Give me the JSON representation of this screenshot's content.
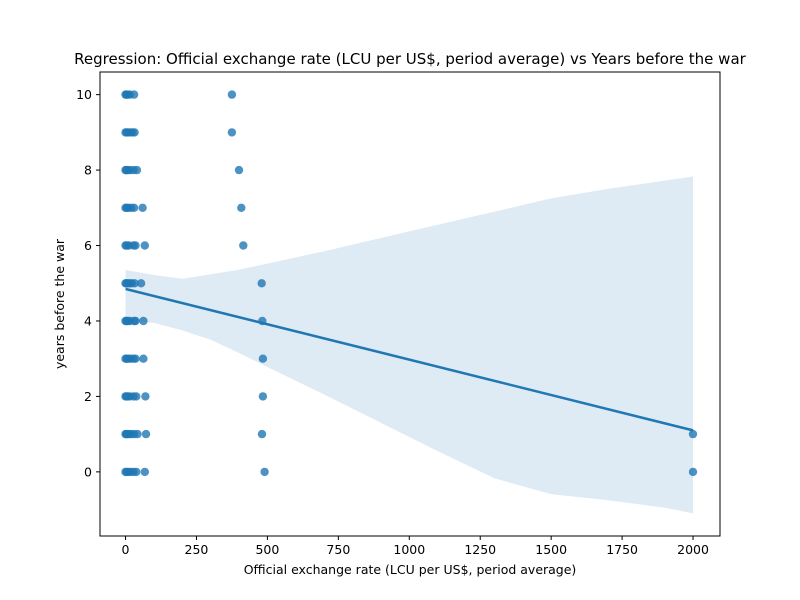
{
  "chart_data": {
    "type": "scatter",
    "title": "Regression: Official exchange rate (LCU per US$, period average) vs Years before the war",
    "xlabel": "Official exchange rate (LCU per US$, period average)",
    "ylabel": "years before the war",
    "xlim": [
      -90,
      2095
    ],
    "ylim": [
      -1.7,
      10.6
    ],
    "xticks": [
      0,
      250,
      500,
      750,
      1000,
      1250,
      1500,
      1750,
      2000
    ],
    "yticks": [
      0,
      2,
      4,
      6,
      8,
      10
    ],
    "grid": false,
    "colors": {
      "points": "#1f77b4",
      "line": "#1f77b4",
      "band": "#1f77b4"
    },
    "regression": {
      "x": [
        0,
        2000
      ],
      "y": [
        4.85,
        1.1
      ]
    },
    "confidence_band": {
      "x": [
        0,
        100,
        200,
        300,
        400,
        500,
        700,
        900,
        1100,
        1300,
        1500,
        1700,
        1900,
        2000
      ],
      "upper": [
        5.35,
        5.22,
        5.12,
        5.24,
        5.36,
        5.52,
        5.85,
        6.2,
        6.55,
        6.9,
        7.25,
        7.5,
        7.72,
        7.83
      ],
      "lower": [
        4.0,
        3.95,
        3.75,
        3.5,
        3.15,
        2.78,
        2.05,
        1.3,
        0.55,
        -0.17,
        -0.59,
        -0.75,
        -0.95,
        -1.1
      ]
    },
    "points": [
      {
        "x": 0,
        "y": 10
      },
      {
        "x": 3,
        "y": 10
      },
      {
        "x": 8,
        "y": 10
      },
      {
        "x": 15,
        "y": 10
      },
      {
        "x": 30,
        "y": 10
      },
      {
        "x": 375,
        "y": 10
      },
      {
        "x": 0,
        "y": 9
      },
      {
        "x": 4,
        "y": 9
      },
      {
        "x": 10,
        "y": 9
      },
      {
        "x": 18,
        "y": 9
      },
      {
        "x": 25,
        "y": 9
      },
      {
        "x": 32,
        "y": 9
      },
      {
        "x": 375,
        "y": 9
      },
      {
        "x": 0,
        "y": 8
      },
      {
        "x": 3,
        "y": 8
      },
      {
        "x": 8,
        "y": 8
      },
      {
        "x": 15,
        "y": 8
      },
      {
        "x": 28,
        "y": 8
      },
      {
        "x": 40,
        "y": 8
      },
      {
        "x": 400,
        "y": 8
      },
      {
        "x": 0,
        "y": 7
      },
      {
        "x": 4,
        "y": 7
      },
      {
        "x": 10,
        "y": 7
      },
      {
        "x": 20,
        "y": 7
      },
      {
        "x": 30,
        "y": 7
      },
      {
        "x": 60,
        "y": 7
      },
      {
        "x": 408,
        "y": 7
      },
      {
        "x": 0,
        "y": 6
      },
      {
        "x": 4,
        "y": 6
      },
      {
        "x": 12,
        "y": 6
      },
      {
        "x": 28,
        "y": 6
      },
      {
        "x": 35,
        "y": 6
      },
      {
        "x": 68,
        "y": 6
      },
      {
        "x": 415,
        "y": 6
      },
      {
        "x": 0,
        "y": 5
      },
      {
        "x": 3,
        "y": 5
      },
      {
        "x": 8,
        "y": 5
      },
      {
        "x": 15,
        "y": 5
      },
      {
        "x": 22,
        "y": 5
      },
      {
        "x": 32,
        "y": 5
      },
      {
        "x": 55,
        "y": 5
      },
      {
        "x": 480,
        "y": 5
      },
      {
        "x": 0,
        "y": 4
      },
      {
        "x": 3,
        "y": 4
      },
      {
        "x": 8,
        "y": 4
      },
      {
        "x": 15,
        "y": 4
      },
      {
        "x": 30,
        "y": 4
      },
      {
        "x": 35,
        "y": 4
      },
      {
        "x": 63,
        "y": 4
      },
      {
        "x": 482,
        "y": 4
      },
      {
        "x": 0,
        "y": 3
      },
      {
        "x": 4,
        "y": 3
      },
      {
        "x": 10,
        "y": 3
      },
      {
        "x": 18,
        "y": 3
      },
      {
        "x": 28,
        "y": 3
      },
      {
        "x": 35,
        "y": 3
      },
      {
        "x": 63,
        "y": 3
      },
      {
        "x": 484,
        "y": 3
      },
      {
        "x": 0,
        "y": 2
      },
      {
        "x": 3,
        "y": 2
      },
      {
        "x": 8,
        "y": 2
      },
      {
        "x": 15,
        "y": 2
      },
      {
        "x": 28,
        "y": 2
      },
      {
        "x": 38,
        "y": 2
      },
      {
        "x": 70,
        "y": 2
      },
      {
        "x": 484,
        "y": 2
      },
      {
        "x": 0,
        "y": 1
      },
      {
        "x": 3,
        "y": 1
      },
      {
        "x": 6,
        "y": 1
      },
      {
        "x": 12,
        "y": 1
      },
      {
        "x": 20,
        "y": 1
      },
      {
        "x": 30,
        "y": 1
      },
      {
        "x": 42,
        "y": 1
      },
      {
        "x": 72,
        "y": 1
      },
      {
        "x": 481,
        "y": 1
      },
      {
        "x": 2000,
        "y": 1
      },
      {
        "x": 0,
        "y": 0
      },
      {
        "x": 4,
        "y": 0
      },
      {
        "x": 10,
        "y": 0
      },
      {
        "x": 18,
        "y": 0
      },
      {
        "x": 28,
        "y": 0
      },
      {
        "x": 38,
        "y": 0
      },
      {
        "x": 68,
        "y": 0
      },
      {
        "x": 490,
        "y": 0
      },
      {
        "x": 2000,
        "y": 0
      }
    ]
  }
}
